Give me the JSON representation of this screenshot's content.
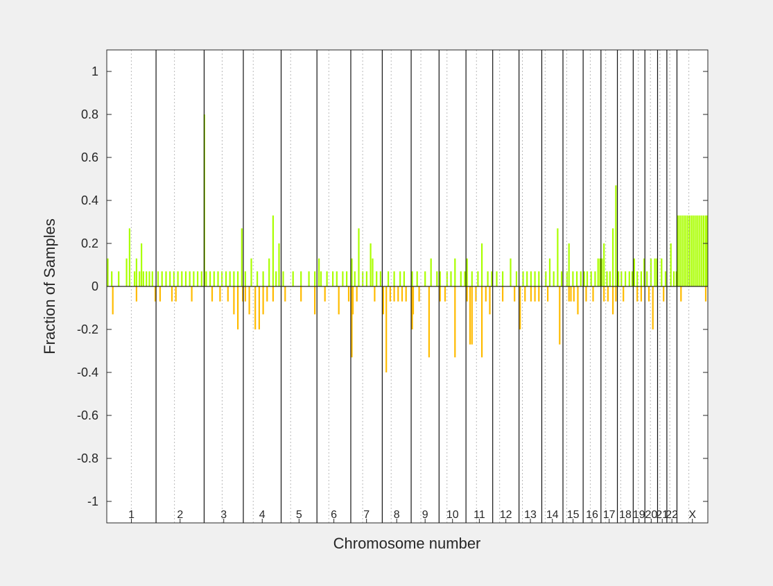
{
  "chart_data": {
    "type": "bar",
    "xlabel": "Chromosome number",
    "ylabel": "Fraction of Samples",
    "ylim": [
      -1.1,
      1.1
    ],
    "yticks": [
      1,
      0.8,
      0.6,
      0.4,
      0.2,
      0,
      -0.2,
      -0.4,
      -0.6,
      -0.8,
      -1
    ],
    "grid": "dotted chromosome centromere lines",
    "chromosomes": [
      "1",
      "2",
      "3",
      "4",
      "5",
      "6",
      "7",
      "8",
      "9",
      "10",
      "11",
      "12",
      "13",
      "14",
      "15",
      "16",
      "17",
      "18",
      "19",
      "20",
      "21",
      "22",
      "X"
    ],
    "chromosome_sizes_mb": [
      249,
      243,
      198,
      191,
      181,
      171,
      159,
      146,
      141,
      136,
      135,
      133,
      115,
      107,
      102,
      90,
      83,
      80,
      59,
      64,
      47,
      51,
      156
    ],
    "centromeres_mb": [
      124,
      93,
      91,
      50,
      48,
      60,
      60,
      45,
      49,
      40,
      53,
      35,
      17,
      17,
      19,
      36,
      24,
      17,
      26,
      28,
      12,
      15,
      60
    ],
    "series": [
      {
        "kind": "gain",
        "color": "#aaff00",
        "points": [
          [
            1,
            5,
            0.13
          ],
          [
            1,
            25,
            0.07
          ],
          [
            1,
            60,
            0.07
          ],
          [
            1,
            100,
            0.13
          ],
          [
            1,
            115,
            0.27
          ],
          [
            1,
            140,
            0.07
          ],
          [
            1,
            150,
            0.13
          ],
          [
            1,
            165,
            0.07
          ],
          [
            1,
            175,
            0.2
          ],
          [
            1,
            185,
            0.07
          ],
          [
            1,
            200,
            0.07
          ],
          [
            1,
            215,
            0.07
          ],
          [
            1,
            230,
            0.07
          ],
          [
            2,
            10,
            0.07
          ],
          [
            2,
            30,
            0.07
          ],
          [
            2,
            50,
            0.07
          ],
          [
            2,
            70,
            0.07
          ],
          [
            2,
            90,
            0.07
          ],
          [
            2,
            110,
            0.07
          ],
          [
            2,
            130,
            0.07
          ],
          [
            2,
            150,
            0.07
          ],
          [
            2,
            170,
            0.07
          ],
          [
            2,
            190,
            0.07
          ],
          [
            2,
            210,
            0.07
          ],
          [
            2,
            230,
            0.07
          ],
          [
            3,
            1,
            0.8
          ],
          [
            3,
            10,
            0.07
          ],
          [
            3,
            30,
            0.07
          ],
          [
            3,
            50,
            0.07
          ],
          [
            3,
            70,
            0.07
          ],
          [
            3,
            90,
            0.07
          ],
          [
            3,
            110,
            0.07
          ],
          [
            3,
            130,
            0.07
          ],
          [
            3,
            150,
            0.07
          ],
          [
            3,
            170,
            0.07
          ],
          [
            3,
            190,
            0.27
          ],
          [
            4,
            10,
            0.07
          ],
          [
            4,
            40,
            0.13
          ],
          [
            4,
            70,
            0.07
          ],
          [
            4,
            100,
            0.07
          ],
          [
            4,
            130,
            0.13
          ],
          [
            4,
            150,
            0.33
          ],
          [
            4,
            165,
            0.07
          ],
          [
            4,
            180,
            0.2
          ],
          [
            5,
            10,
            0.07
          ],
          [
            5,
            60,
            0.07
          ],
          [
            5,
            100,
            0.07
          ],
          [
            5,
            140,
            0.07
          ],
          [
            5,
            170,
            0.07
          ],
          [
            6,
            10,
            0.13
          ],
          [
            6,
            20,
            0.07
          ],
          [
            6,
            50,
            0.07
          ],
          [
            6,
            80,
            0.07
          ],
          [
            6,
            100,
            0.07
          ],
          [
            6,
            130,
            0.07
          ],
          [
            6,
            150,
            0.07
          ],
          [
            7,
            5,
            0.13
          ],
          [
            7,
            20,
            0.07
          ],
          [
            7,
            40,
            0.27
          ],
          [
            7,
            60,
            0.07
          ],
          [
            7,
            80,
            0.07
          ],
          [
            7,
            100,
            0.2
          ],
          [
            7,
            110,
            0.13
          ],
          [
            7,
            130,
            0.07
          ],
          [
            7,
            150,
            0.07
          ],
          [
            8,
            30,
            0.07
          ],
          [
            8,
            60,
            0.07
          ],
          [
            8,
            90,
            0.07
          ],
          [
            8,
            110,
            0.07
          ],
          [
            9,
            5,
            0.07
          ],
          [
            9,
            30,
            0.07
          ],
          [
            9,
            70,
            0.07
          ],
          [
            9,
            100,
            0.13
          ],
          [
            9,
            130,
            0.07
          ],
          [
            10,
            5,
            0.07
          ],
          [
            10,
            40,
            0.07
          ],
          [
            10,
            60,
            0.07
          ],
          [
            10,
            80,
            0.13
          ],
          [
            10,
            110,
            0.07
          ],
          [
            10,
            130,
            0.07
          ],
          [
            11,
            5,
            0.13
          ],
          [
            11,
            30,
            0.07
          ],
          [
            11,
            60,
            0.07
          ],
          [
            11,
            80,
            0.2
          ],
          [
            11,
            110,
            0.07
          ],
          [
            11,
            130,
            0.07
          ],
          [
            12,
            20,
            0.07
          ],
          [
            12,
            50,
            0.07
          ],
          [
            12,
            90,
            0.13
          ],
          [
            12,
            120,
            0.07
          ],
          [
            13,
            20,
            0.07
          ],
          [
            13,
            40,
            0.07
          ],
          [
            13,
            60,
            0.07
          ],
          [
            13,
            80,
            0.07
          ],
          [
            13,
            100,
            0.07
          ],
          [
            14,
            20,
            0.07
          ],
          [
            14,
            40,
            0.13
          ],
          [
            14,
            60,
            0.07
          ],
          [
            14,
            80,
            0.27
          ],
          [
            14,
            100,
            0.07
          ],
          [
            15,
            20,
            0.07
          ],
          [
            15,
            30,
            0.2
          ],
          [
            15,
            50,
            0.07
          ],
          [
            15,
            70,
            0.07
          ],
          [
            15,
            90,
            0.07
          ],
          [
            16,
            5,
            0.07
          ],
          [
            16,
            20,
            0.07
          ],
          [
            16,
            40,
            0.07
          ],
          [
            16,
            60,
            0.07
          ],
          [
            16,
            75,
            0.13
          ],
          [
            16,
            85,
            0.13
          ],
          [
            17,
            5,
            0.13
          ],
          [
            17,
            15,
            0.2
          ],
          [
            17,
            30,
            0.07
          ],
          [
            17,
            45,
            0.07
          ],
          [
            17,
            60,
            0.27
          ],
          [
            17,
            75,
            0.47
          ],
          [
            18,
            5,
            0.07
          ],
          [
            18,
            20,
            0.07
          ],
          [
            18,
            40,
            0.07
          ],
          [
            18,
            60,
            0.07
          ],
          [
            18,
            75,
            0.07
          ],
          [
            19,
            5,
            0.13
          ],
          [
            19,
            20,
            0.07
          ],
          [
            19,
            40,
            0.07
          ],
          [
            19,
            55,
            0.13
          ],
          [
            20,
            10,
            0.07
          ],
          [
            20,
            30,
            0.13
          ],
          [
            20,
            50,
            0.13
          ],
          [
            20,
            60,
            0.13
          ],
          [
            21,
            20,
            0.13
          ],
          [
            21,
            40,
            0.07
          ],
          [
            22,
            20,
            0.2
          ],
          [
            22,
            35,
            0.07
          ],
          [
            22,
            48,
            0.07
          ],
          [
            23,
            5,
            0.33
          ],
          [
            23,
            15,
            0.33
          ],
          [
            23,
            25,
            0.33
          ],
          [
            23,
            35,
            0.33
          ],
          [
            23,
            45,
            0.33
          ],
          [
            23,
            55,
            0.33
          ],
          [
            23,
            65,
            0.33
          ],
          [
            23,
            75,
            0.33
          ],
          [
            23,
            85,
            0.33
          ],
          [
            23,
            95,
            0.33
          ],
          [
            23,
            105,
            0.33
          ],
          [
            23,
            115,
            0.33
          ],
          [
            23,
            125,
            0.33
          ],
          [
            23,
            135,
            0.33
          ],
          [
            23,
            145,
            0.33
          ],
          [
            23,
            153,
            0.33
          ]
        ]
      },
      {
        "kind": "loss",
        "color": "#ffbb00",
        "points": [
          [
            1,
            30,
            -0.13
          ],
          [
            1,
            150,
            -0.07
          ],
          [
            1,
            245,
            -0.07
          ],
          [
            2,
            20,
            -0.07
          ],
          [
            2,
            80,
            -0.07
          ],
          [
            2,
            100,
            -0.07
          ],
          [
            2,
            180,
            -0.07
          ],
          [
            3,
            40,
            -0.07
          ],
          [
            3,
            80,
            -0.07
          ],
          [
            3,
            120,
            -0.07
          ],
          [
            3,
            150,
            -0.13
          ],
          [
            3,
            170,
            -0.2
          ],
          [
            3,
            195,
            -0.07
          ],
          [
            4,
            10,
            -0.07
          ],
          [
            4,
            30,
            -0.13
          ],
          [
            4,
            60,
            -0.2
          ],
          [
            4,
            80,
            -0.2
          ],
          [
            4,
            100,
            -0.13
          ],
          [
            4,
            120,
            -0.07
          ],
          [
            4,
            150,
            -0.07
          ],
          [
            5,
            20,
            -0.07
          ],
          [
            5,
            100,
            -0.07
          ],
          [
            5,
            170,
            -0.13
          ],
          [
            6,
            40,
            -0.07
          ],
          [
            6,
            110,
            -0.13
          ],
          [
            6,
            160,
            -0.07
          ],
          [
            7,
            5,
            -0.33
          ],
          [
            7,
            10,
            -0.13
          ],
          [
            7,
            30,
            -0.07
          ],
          [
            7,
            120,
            -0.07
          ],
          [
            8,
            5,
            -0.13
          ],
          [
            8,
            20,
            -0.4
          ],
          [
            8,
            40,
            -0.07
          ],
          [
            8,
            60,
            -0.07
          ],
          [
            8,
            80,
            -0.07
          ],
          [
            8,
            100,
            -0.07
          ],
          [
            8,
            120,
            -0.07
          ],
          [
            9,
            5,
            -0.2
          ],
          [
            9,
            10,
            -0.13
          ],
          [
            9,
            40,
            -0.07
          ],
          [
            9,
            90,
            -0.33
          ],
          [
            10,
            5,
            -0.07
          ],
          [
            10,
            30,
            -0.07
          ],
          [
            10,
            80,
            -0.33
          ],
          [
            11,
            5,
            -0.07
          ],
          [
            11,
            20,
            -0.27
          ],
          [
            11,
            30,
            -0.27
          ],
          [
            11,
            50,
            -0.07
          ],
          [
            11,
            80,
            -0.33
          ],
          [
            11,
            100,
            -0.07
          ],
          [
            11,
            120,
            -0.13
          ],
          [
            12,
            50,
            -0.07
          ],
          [
            12,
            110,
            -0.07
          ],
          [
            13,
            5,
            -0.2
          ],
          [
            13,
            30,
            -0.07
          ],
          [
            13,
            60,
            -0.07
          ],
          [
            13,
            80,
            -0.07
          ],
          [
            13,
            100,
            -0.07
          ],
          [
            14,
            30,
            -0.07
          ],
          [
            14,
            90,
            -0.27
          ],
          [
            15,
            30,
            -0.07
          ],
          [
            15,
            40,
            -0.07
          ],
          [
            15,
            55,
            -0.07
          ],
          [
            15,
            75,
            -0.13
          ],
          [
            16,
            15,
            -0.07
          ],
          [
            16,
            50,
            -0.07
          ],
          [
            17,
            15,
            -0.07
          ],
          [
            17,
            35,
            -0.07
          ],
          [
            17,
            60,
            -0.13
          ],
          [
            17,
            75,
            -0.07
          ],
          [
            18,
            30,
            -0.07
          ],
          [
            19,
            20,
            -0.07
          ],
          [
            19,
            40,
            -0.07
          ],
          [
            20,
            20,
            -0.07
          ],
          [
            20,
            40,
            -0.2
          ],
          [
            21,
            30,
            -0.07
          ],
          [
            23,
            20,
            -0.07
          ],
          [
            23,
            145,
            -0.07
          ]
        ]
      }
    ]
  }
}
